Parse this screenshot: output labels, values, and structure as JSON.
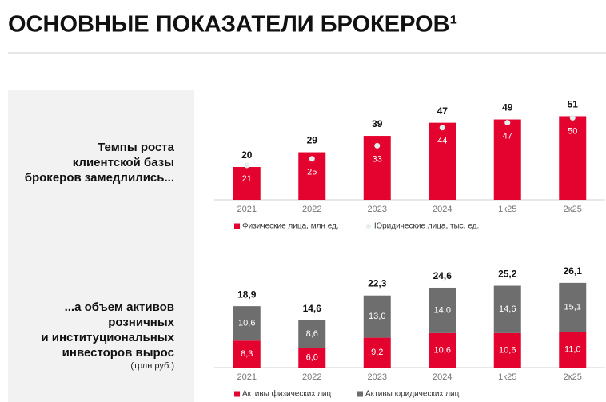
{
  "title": "ОСНОВНЫЕ ПОКАЗАТЕЛИ БРОКЕРОВ¹",
  "chart_data": [
    {
      "type": "bar",
      "caption": [
        "Темпы роста",
        "клиентской базы",
        "брокеров замедлились..."
      ],
      "categories": [
        "2021",
        "2022",
        "2023",
        "2024",
        "1к25",
        "2к25"
      ],
      "series": [
        {
          "name": "Физические лица, млн ед.",
          "color": "#e4032e",
          "marker": "bar",
          "values": [
            20,
            29,
            39,
            47,
            49,
            51
          ]
        },
        {
          "name": "Юридические лица, тыс. ед.",
          "color": "#e3efec",
          "marker": "dot",
          "values": [
            21,
            25,
            33,
            44,
            47,
            50
          ]
        }
      ],
      "ylim": [
        0,
        60
      ]
    },
    {
      "type": "stacked_bar",
      "caption": [
        "...а объем активов",
        "розничных",
        "и институциональных",
        "инвесторов вырос"
      ],
      "unit": "(трлн руб.)",
      "categories": [
        "2021",
        "2022",
        "2023",
        "2024",
        "1к25",
        "2к25"
      ],
      "series": [
        {
          "name": "Активы физических лиц",
          "color": "#e4032e",
          "values": [
            8.3,
            6.0,
            9.2,
            10.6,
            10.6,
            11.0
          ],
          "value_labels": [
            "8,3",
            "6,0",
            "9,2",
            "10,6",
            "10,6",
            "11,0"
          ]
        },
        {
          "name": "Активы юридических лиц",
          "color": "#6e6e6e",
          "values": [
            10.6,
            8.6,
            13.0,
            14.0,
            14.6,
            15.1
          ],
          "value_labels": [
            "10,6",
            "8,6",
            "13,0",
            "14,0",
            "14,6",
            "15,1"
          ]
        }
      ],
      "totals": [
        18.9,
        14.6,
        22.3,
        24.6,
        25.2,
        26.1
      ],
      "total_labels": [
        "18,9",
        "14,6",
        "22,3",
        "24,6",
        "25,2",
        "26,1"
      ],
      "ylim": [
        0,
        30
      ]
    }
  ]
}
